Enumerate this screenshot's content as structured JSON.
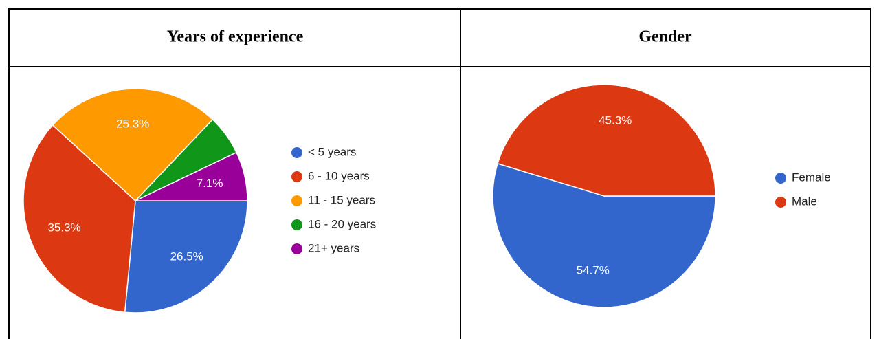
{
  "chart_data": [
    {
      "type": "pie",
      "title": "Years of experience",
      "categories": [
        "< 5 years",
        "6 - 10 years",
        "11 - 15 years",
        "16 - 20 years",
        "21+ years"
      ],
      "values": [
        26.5,
        35.3,
        25.3,
        5.8,
        7.1
      ],
      "value_labels": [
        "26.5%",
        "35.3%",
        "25.3%",
        null,
        "7.1%"
      ],
      "colors": [
        "#3366cc",
        "#dc3912",
        "#ff9900",
        "#109618",
        "#990099"
      ],
      "legend": "right"
    },
    {
      "type": "pie",
      "title": "Gender",
      "categories": [
        "Female",
        "Male"
      ],
      "values": [
        54.7,
        45.3
      ],
      "value_labels": [
        "54.7%",
        "45.3%"
      ],
      "colors": [
        "#3366cc",
        "#dc3912"
      ],
      "legend": "right"
    }
  ]
}
